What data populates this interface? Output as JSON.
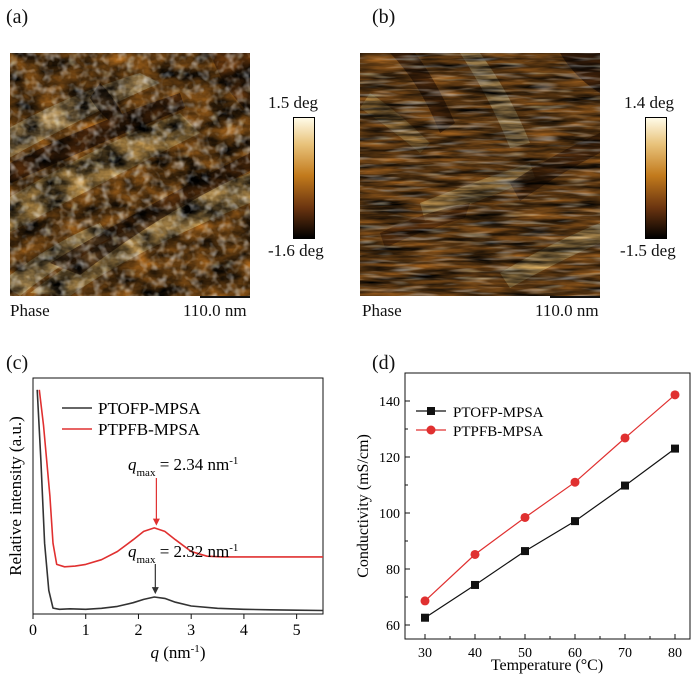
{
  "panels": {
    "a": {
      "label": "(a)",
      "top_value": "1.5 deg",
      "bottom_value": "-1.6 deg",
      "mode": "Phase",
      "scale": "110.0 nm"
    },
    "b": {
      "label": "(b)",
      "top_value": "1.4 deg",
      "bottom_value": "-1.5 deg",
      "mode": "Phase",
      "scale": "110.0 nm"
    },
    "c": {
      "label": "(c)"
    },
    "d": {
      "label": "(d)"
    }
  },
  "colors": {
    "ptofp": "#333333",
    "ptpfb": "#e03030"
  },
  "chart_data": [
    {
      "type": "line",
      "ylabel": "Relative intensity (a.u.)",
      "xlabel": "q (nm-1)",
      "xlabel_main": "q",
      "xlabel_unit": " (nm",
      "xlabel_sup": "-1",
      "xlabel_close": ")",
      "xlim": [
        0,
        5.5
      ],
      "xticks": [
        "0",
        "1",
        "2",
        "3",
        "4",
        "5"
      ],
      "xtick_values": [
        0,
        1,
        2,
        3,
        4,
        5
      ],
      "y_ticks_shown": false,
      "legend_position": "top-left",
      "series": [
        {
          "name": "PTOFP-MPSA",
          "x": [
            0.08,
            0.15,
            0.22,
            0.3,
            0.38,
            0.5,
            0.7,
            1.0,
            1.3,
            1.6,
            1.9,
            2.1,
            2.3,
            2.5,
            2.7,
            3.0,
            3.5,
            4.0,
            4.5,
            5.0,
            5.5
          ],
          "y": [
            9.5,
            6.5,
            3.0,
            1.0,
            0.25,
            0.2,
            0.22,
            0.2,
            0.24,
            0.32,
            0.48,
            0.62,
            0.72,
            0.66,
            0.5,
            0.34,
            0.24,
            0.2,
            0.18,
            0.16,
            0.15
          ]
        },
        {
          "name": "PTPFB-MPSA",
          "x": [
            0.12,
            0.2,
            0.26,
            0.32,
            0.38,
            0.45,
            0.6,
            0.8,
            1.0,
            1.3,
            1.6,
            1.9,
            2.1,
            2.3,
            2.5,
            2.7,
            3.0,
            3.3,
            3.6,
            4.0,
            4.5,
            5.0,
            5.5
          ],
          "y": [
            9.5,
            8.0,
            6.5,
            5.0,
            3.0,
            2.1,
            2.0,
            2.03,
            2.1,
            2.3,
            2.65,
            3.15,
            3.5,
            3.65,
            3.5,
            3.15,
            2.65,
            2.45,
            2.42,
            2.42,
            2.42,
            2.42,
            2.42
          ]
        }
      ],
      "annotations": [
        {
          "prefix": "q",
          "sub": "max",
          "text": " = 2.34 nm",
          "sup": "-1",
          "series": "PTPFB-MPSA",
          "x": 2.34
        },
        {
          "prefix": "q",
          "sub": "max",
          "text": " = 2.32 nm",
          "sup": "-1",
          "series": "PTOFP-MPSA",
          "x": 2.32
        }
      ]
    },
    {
      "type": "line",
      "xlabel": "Temperature (°C)",
      "ylabel": "Conductivity (mS/cm)",
      "xlim": [
        26,
        83
      ],
      "ylim": [
        55,
        150
      ],
      "xticks": [
        30,
        40,
        50,
        60,
        70,
        80
      ],
      "yticks": [
        60,
        80,
        100,
        120,
        140
      ],
      "legend_position": "top-left",
      "series": [
        {
          "name": "PTOFP-MPSA",
          "marker": "square",
          "x": [
            30,
            40,
            50,
            60,
            70,
            80
          ],
          "y": [
            62.6,
            74.3,
            86.4,
            97.1,
            109.8,
            123.0
          ]
        },
        {
          "name": "PTPFB-MPSA",
          "marker": "circle",
          "x": [
            30,
            40,
            50,
            60,
            70,
            80
          ],
          "y": [
            68.6,
            85.2,
            98.4,
            111.0,
            126.8,
            142.2
          ]
        }
      ]
    }
  ]
}
